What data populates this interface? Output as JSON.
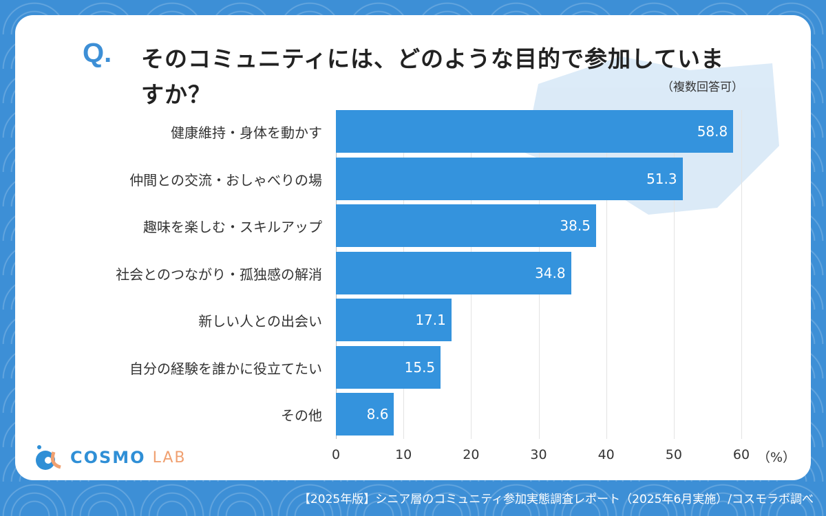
{
  "header": {
    "q_mark": "Q.",
    "title": "そのコミュニティには、どのような目的で参加していますか？",
    "note": "（複数回答可）"
  },
  "chart_data": {
    "type": "bar",
    "orientation": "horizontal",
    "categories": [
      "健康維持・身体を動かす",
      "仲間との交流・おしゃべりの場",
      "趣味を楽しむ・スキルアップ",
      "社会とのつながり・孤独感の解消",
      "新しい人との出会い",
      "自分の経験を誰かに役立てたい",
      "その他"
    ],
    "values": [
      58.8,
      51.3,
      38.5,
      34.8,
      17.1,
      15.5,
      8.6
    ],
    "value_labels": [
      "58.8",
      "51.3",
      "38.5",
      "34.8",
      "17.1",
      "15.5",
      "8.6"
    ],
    "xlim": [
      0,
      60
    ],
    "xticks": [
      "0",
      "10",
      "20",
      "30",
      "40",
      "50",
      "60"
    ],
    "xunit": "（%）",
    "grid": true,
    "bar_color": "#3493dd"
  },
  "logo": {
    "text1": "COSMO",
    "text2": "LAB"
  },
  "footer": "【2025年版】シニア層のコミュニティ参加実態調査レポート（2025年6月実施）/コスモラボ調べ"
}
